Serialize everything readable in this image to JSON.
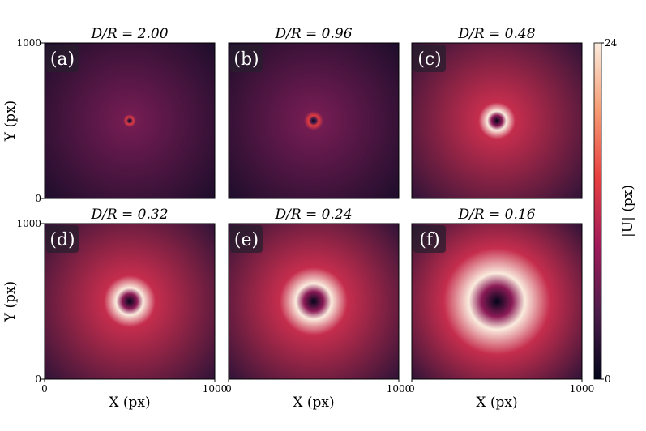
{
  "chart_data": [
    {
      "type": "heatmap",
      "title": "D/R = 2.00",
      "panel_label": "(a)",
      "xlim": [
        0,
        1000
      ],
      "ylim": [
        0,
        1000
      ],
      "yticks": [
        0,
        1000
      ],
      "ylabel": "Y (px)",
      "ring_radius": 20,
      "peak_value": 14
    },
    {
      "type": "heatmap",
      "title": "D/R = 0.96",
      "panel_label": "(b)",
      "xlim": [
        0,
        1000
      ],
      "ylim": [
        0,
        1000
      ],
      "ring_radius": 30,
      "peak_value": 14
    },
    {
      "type": "heatmap",
      "title": "D/R = 0.48",
      "panel_label": "(c)",
      "xlim": [
        0,
        1000
      ],
      "ylim": [
        0,
        1000
      ],
      "ring_radius": 57,
      "peak_value": 24
    },
    {
      "type": "heatmap",
      "title": "D/R = 0.32",
      "panel_label": "(d)",
      "xlim": [
        0,
        1000
      ],
      "ylim": [
        0,
        1000
      ],
      "xticks": [
        0,
        1000
      ],
      "yticks": [
        0,
        1000
      ],
      "xlabel": "X (px)",
      "ylabel": "Y (px)",
      "ring_radius": 80,
      "peak_value": 24
    },
    {
      "type": "heatmap",
      "title": "D/R = 0.24",
      "panel_label": "(e)",
      "xlim": [
        0,
        1000
      ],
      "ylim": [
        0,
        1000
      ],
      "xticks": [
        0,
        1000
      ],
      "xlabel": "X (px)",
      "ring_radius": 105,
      "peak_value": 24
    },
    {
      "type": "heatmap",
      "title": "D/R = 0.16",
      "panel_label": "(f)",
      "xlim": [
        0,
        1000
      ],
      "ylim": [
        0,
        1000
      ],
      "xticks": [
        0,
        1000
      ],
      "xlabel": "X (px)",
      "ring_radius": 165,
      "peak_value": 24
    },
    {
      "type": "colorbar",
      "ylabel": "|U| (px)",
      "ylim": [
        0,
        24
      ],
      "yticks": [
        0,
        24
      ],
      "colors": [
        "#03051a",
        "#4c1d4b",
        "#a11a5b",
        "#e83f3f",
        "#f69c73",
        "#faebdd"
      ]
    }
  ]
}
